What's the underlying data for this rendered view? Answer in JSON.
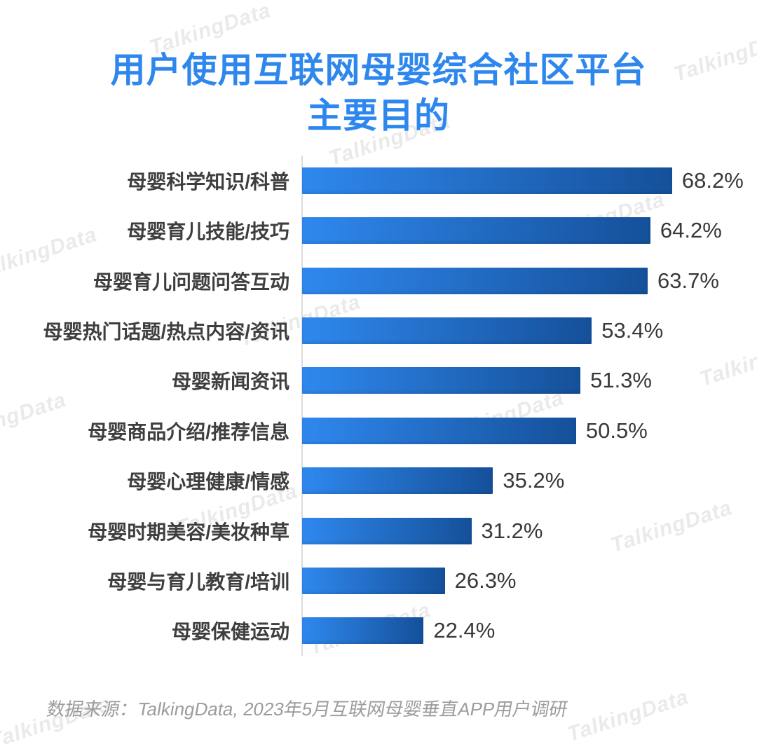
{
  "page": {
    "background": "#ffffff"
  },
  "title": {
    "text": "用户使用互联网母婴综合社区平台\n主要目的",
    "color": "#2e87ed"
  },
  "watermark": {
    "text": "TalkingData",
    "color": "#eaeaea"
  },
  "source": {
    "text": "数据来源：TalkingData, 2023年5月互联网母婴垂直APP用户调研"
  },
  "chart_data": {
    "type": "bar",
    "orientation": "horizontal",
    "title": "用户使用互联网母婴综合社区平台主要目的",
    "xlabel": "",
    "ylabel": "",
    "xlim": [
      0,
      100
    ],
    "unit": "%",
    "grid": false,
    "legend": false,
    "axis_line_color": "#dcdcdc",
    "bar_color_start": "#2f88ee",
    "bar_color_end": "#15509a",
    "label_color": "#3e3e3e",
    "value_color": "#383838",
    "categories": [
      "母婴科学知识/科普",
      "母婴育儿技能/技巧",
      "母婴育儿问题问答互动",
      "母婴热门话题/热点内容/资讯",
      "母婴新闻资讯",
      "母婴商品介绍/推荐信息",
      "母婴心理健康/情感",
      "母婴时期美容/美妆种草",
      "母婴与育儿教育/培训",
      "母婴保健运动"
    ],
    "values": [
      68.2,
      64.2,
      63.7,
      53.4,
      51.3,
      50.5,
      35.2,
      31.2,
      26.3,
      22.4
    ],
    "value_labels": [
      "68.2%",
      "64.2%",
      "63.7%",
      "53.4%",
      "51.3%",
      "50.5%",
      "35.2%",
      "31.2%",
      "26.3%",
      "22.4%"
    ]
  }
}
